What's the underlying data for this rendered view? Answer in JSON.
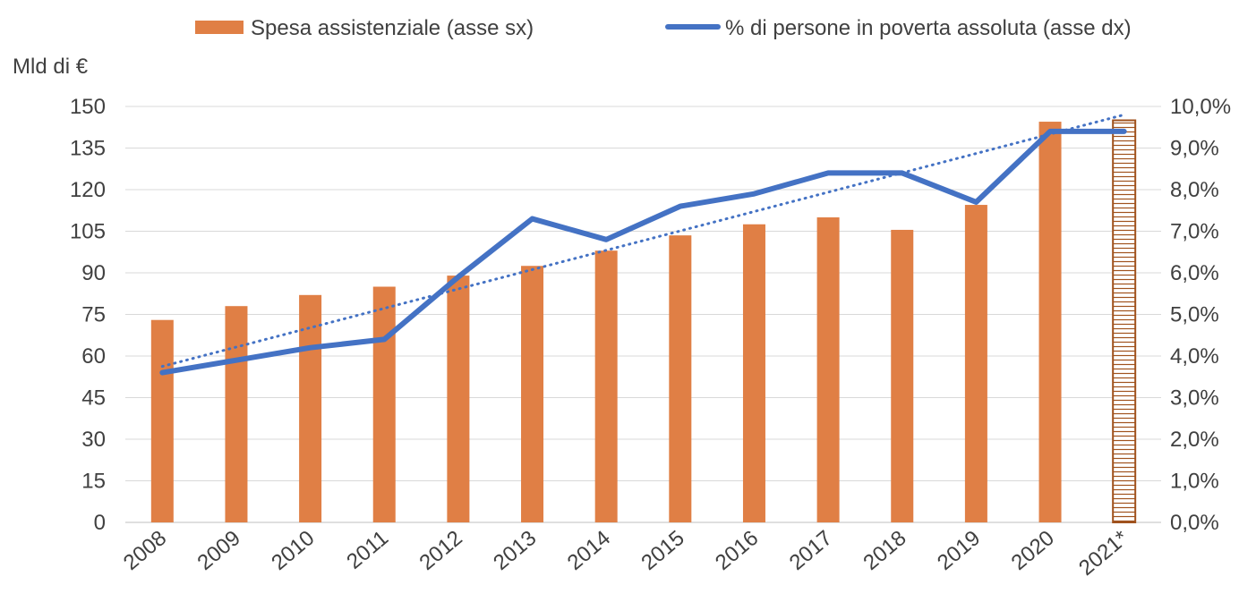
{
  "chart_data": {
    "type": "bar",
    "categories": [
      "2008",
      "2009",
      "2010",
      "2011",
      "2012",
      "2013",
      "2014",
      "2015",
      "2016",
      "2017",
      "2018",
      "2019",
      "2020",
      "2021*"
    ],
    "y_left_label": "Mld di €",
    "y_left_ticks": [
      "0",
      "15",
      "30",
      "45",
      "60",
      "75",
      "90",
      "105",
      "120",
      "135",
      "150"
    ],
    "y_left_range": [
      0,
      150
    ],
    "y_right_ticks": [
      "0,0%",
      "1,0%",
      "2,0%",
      "3,0%",
      "4,0%",
      "5,0%",
      "6,0%",
      "7,0%",
      "8,0%",
      "9,0%",
      "10,0%"
    ],
    "y_right_range": [
      0,
      10
    ],
    "grid": true,
    "legend_position": "top",
    "series": [
      {
        "name": "Spesa assistenziale (asse sx)",
        "type": "bar",
        "axis": "left",
        "color": "#E07F45",
        "values": [
          73,
          78,
          82,
          85,
          89,
          92.5,
          98,
          103.5,
          107.5,
          110,
          105.5,
          114.5,
          144.5,
          145
        ],
        "hatched_last": true
      },
      {
        "name": "% di persone in poverta assoluta (asse dx)",
        "type": "line",
        "axis": "right",
        "color": "#4472C4",
        "values": [
          3.6,
          3.9,
          4.2,
          4.4,
          5.9,
          7.3,
          6.8,
          7.6,
          7.9,
          8.4,
          8.4,
          7.7,
          9.4,
          9.4
        ]
      }
    ],
    "trendline": {
      "style": "dotted",
      "color": "#4472C4",
      "start": 3.75,
      "end": 9.8
    }
  }
}
